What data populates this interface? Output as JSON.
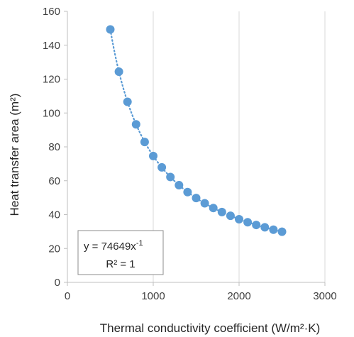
{
  "chart_data": {
    "type": "scatter",
    "xlabel": "Thermal conductivity coefficient (W/m²·K)",
    "ylabel": "Heat transfer area (m²)",
    "xlim": [
      0,
      3000
    ],
    "ylim": [
      0,
      160
    ],
    "xticks": [
      0,
      1000,
      2000,
      3000
    ],
    "yticks": [
      0,
      20,
      40,
      60,
      80,
      100,
      120,
      140,
      160
    ],
    "grid": "vertical",
    "series": [
      {
        "color": "#5b9bd5",
        "marker": "circle",
        "x": [
          500,
          600,
          700,
          800,
          900,
          1000,
          1100,
          1200,
          1300,
          1400,
          1500,
          1600,
          1700,
          1800,
          1900,
          2000,
          2100,
          2200,
          2300,
          2400,
          2500
        ],
        "y": [
          149.3,
          124.4,
          106.6,
          93.3,
          82.9,
          74.6,
          67.9,
          62.2,
          57.4,
          53.3,
          49.8,
          46.7,
          43.9,
          41.5,
          39.3,
          37.3,
          35.5,
          33.9,
          32.5,
          31.1,
          29.9
        ]
      }
    ],
    "trendline": {
      "type": "power",
      "coefficient": 74649,
      "exponent": -1,
      "style": "dotted",
      "color": "#5b9bd5"
    },
    "equation_box": {
      "equation_prefix": "y = 74649x",
      "equation_exponent": "-1",
      "r_squared": "R² = 1"
    },
    "colors": {
      "marker": "#5b9bd5",
      "gridline": "#d9d9d9",
      "axis_text": "#404040"
    }
  }
}
